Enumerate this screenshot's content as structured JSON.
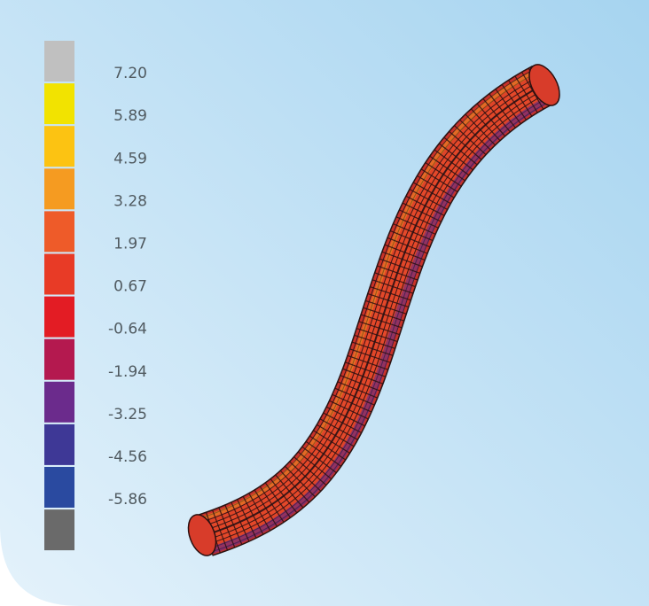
{
  "legend": {
    "labels": [
      "7.20",
      "5.89",
      "4.59",
      "3.28",
      "1.97",
      "0.67",
      "-0.64",
      "-1.94",
      "-3.25",
      "-4.56",
      "-5.86"
    ],
    "colors": [
      "#c0c0c0",
      "#f2e300",
      "#fcc312",
      "#f59b21",
      "#ee5b29",
      "#e83b26",
      "#e31c24",
      "#b4194f",
      "#6b2b8c",
      "#3e3896",
      "#2a4aa0",
      "#6a6a6a"
    ]
  }
}
